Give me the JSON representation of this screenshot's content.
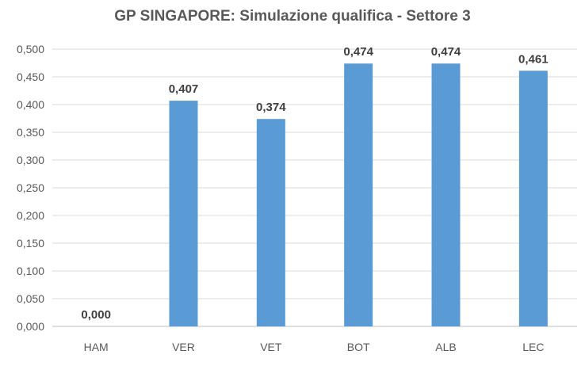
{
  "chart_data": {
    "type": "bar",
    "title": "GP SINGAPORE: Simulazione qualifica  - Settore 3",
    "categories": [
      "HAM",
      "VER",
      "VET",
      "BOT",
      "ALB",
      "LEC"
    ],
    "values": [
      0.0,
      0.407,
      0.374,
      0.474,
      0.474,
      0.461
    ],
    "data_labels": [
      "0,000",
      "0,407",
      "0,374",
      "0,474",
      "0,474",
      "0,461"
    ],
    "y_ticks": [
      "0,000",
      "0,050",
      "0,100",
      "0,150",
      "0,200",
      "0,250",
      "0,300",
      "0,350",
      "0,400",
      "0,450",
      "0,500"
    ],
    "ylim": [
      0,
      0.5
    ],
    "xlabel": "",
    "ylabel": "",
    "grid": true,
    "legend": "none",
    "bar_color": "#5b9bd5"
  }
}
